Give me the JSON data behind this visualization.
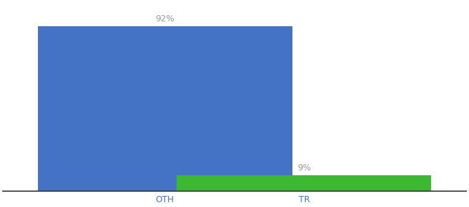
{
  "categories": [
    "OTH",
    "TR"
  ],
  "values": [
    92,
    9
  ],
  "bar_colors": [
    "#4472c4",
    "#3cb832"
  ],
  "label_texts": [
    "92%",
    "9%"
  ],
  "background_color": "#ffffff",
  "ylim": [
    0,
    105
  ],
  "figsize": [
    6.8,
    3.0
  ],
  "dpi": 100,
  "label_fontsize": 9,
  "tick_fontsize": 9,
  "bar_width": 0.55,
  "label_color": "#999999",
  "tick_color": "#4472c4",
  "x_positions": [
    0.35,
    0.65
  ],
  "xlim": [
    0.0,
    1.0
  ]
}
